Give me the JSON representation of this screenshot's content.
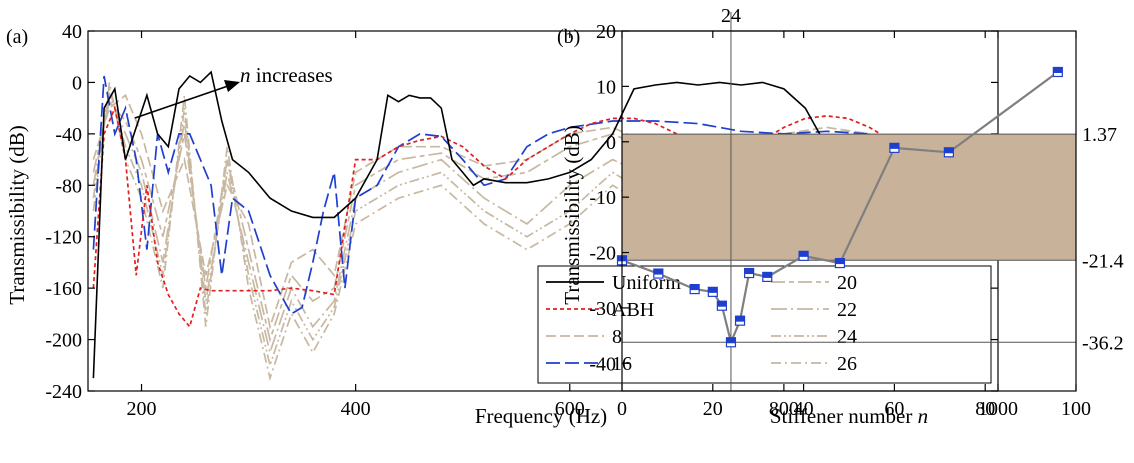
{
  "chart_data": [
    {
      "panel_label": "(a)",
      "type": "line",
      "xlabel": "Frequency (Hz)",
      "ylabel": "Transmissibility (dB)",
      "xlim": [
        150,
        1000
      ],
      "ylim": [
        -240,
        40
      ],
      "xticks": [
        200,
        400,
        600,
        800,
        1000
      ],
      "yticks": [
        40,
        0,
        -40,
        -80,
        -120,
        -160,
        -200,
        -240
      ],
      "grid": false,
      "legend_position": "bottom-right",
      "annotation": {
        "italic": "n",
        "text": " increases"
      },
      "series": [
        {
          "name": "Uniform",
          "color": "#000000",
          "dash": "solid",
          "x": [
            155,
            165,
            175,
            185,
            195,
            205,
            215,
            225,
            235,
            245,
            255,
            265,
            275,
            285,
            300,
            320,
            340,
            360,
            380,
            400,
            420,
            430,
            440,
            450,
            460,
            470,
            480,
            490,
            500,
            510,
            520,
            540,
            560,
            580,
            600,
            620,
            640,
            660,
            680,
            700,
            720,
            740,
            760,
            780,
            800,
            820,
            840,
            860,
            880,
            900,
            910,
            920,
            940,
            960,
            980,
            1000
          ],
          "y": [
            -230,
            -20,
            -5,
            -60,
            -35,
            -10,
            -40,
            -50,
            -5,
            5,
            0,
            8,
            -30,
            -60,
            -70,
            -90,
            -100,
            -105,
            -105,
            -90,
            -60,
            -10,
            -15,
            -10,
            -12,
            -12,
            -20,
            -60,
            -70,
            -80,
            -75,
            -78,
            -78,
            -75,
            -70,
            -60,
            -40,
            -5,
            -2,
            0,
            -2,
            0,
            -2,
            0,
            -5,
            -20,
            -50,
            -70,
            -80,
            -85,
            -75,
            -85,
            -88,
            -90,
            -88,
            -90
          ]
        },
        {
          "name": "ABH",
          "color": "#e02020",
          "dash": "short",
          "x": [
            155,
            165,
            175,
            185,
            195,
            205,
            215,
            225,
            235,
            245,
            255,
            265,
            275,
            285,
            300,
            320,
            340,
            360,
            380,
            400,
            420,
            440,
            460,
            480,
            500,
            520,
            540,
            560,
            580,
            600,
            620,
            640,
            660,
            680,
            700,
            720,
            740,
            760,
            780,
            800,
            820,
            840,
            860,
            880,
            900,
            920,
            940,
            960,
            980,
            1000
          ],
          "y": [
            -160,
            -40,
            -20,
            -60,
            -150,
            -80,
            -140,
            -165,
            -180,
            -190,
            -160,
            -162,
            -162,
            -162,
            -162,
            -162,
            -160,
            -162,
            -165,
            -60,
            -60,
            -50,
            -45,
            -42,
            -50,
            -65,
            -75,
            -60,
            -50,
            -40,
            -32,
            -28,
            -28,
            -32,
            -40,
            -45,
            -52,
            -55,
            -45,
            -35,
            -28,
            -26,
            -28,
            -35,
            -45,
            -55,
            -60,
            -50,
            -55,
            -60
          ]
        },
        {
          "name": "8",
          "color": "#c8b8a2",
          "dash": "dash",
          "x": [
            155,
            170,
            185,
            200,
            220,
            240,
            260,
            280,
            300,
            320,
            340,
            360,
            380,
            400,
            440,
            480,
            520,
            560,
            600,
            640,
            680,
            720,
            760,
            800,
            840,
            880,
            920,
            960,
            1000
          ],
          "y": [
            -60,
            -20,
            -10,
            -40,
            -100,
            -60,
            -150,
            -80,
            -110,
            -190,
            -140,
            -130,
            -150,
            -70,
            -50,
            -50,
            -65,
            -60,
            -40,
            -35,
            -50,
            -60,
            -55,
            -40,
            -35,
            -40,
            -55,
            -50,
            -65
          ]
        },
        {
          "name": "16",
          "color": "#1f3fcf",
          "dash": "long",
          "x": [
            155,
            165,
            175,
            185,
            195,
            205,
            215,
            225,
            235,
            245,
            255,
            265,
            275,
            285,
            300,
            320,
            340,
            350,
            360,
            370,
            380,
            390,
            400,
            420,
            440,
            460,
            480,
            500,
            520,
            540,
            560,
            580,
            600,
            640,
            680,
            720,
            760,
            800,
            840,
            880,
            920,
            960,
            1000
          ],
          "y": [
            -130,
            5,
            -40,
            -20,
            -60,
            -130,
            -40,
            -70,
            -40,
            -40,
            -60,
            -80,
            -150,
            -90,
            -100,
            -150,
            -180,
            -175,
            -140,
            -100,
            -70,
            -160,
            -90,
            -80,
            -50,
            -40,
            -42,
            -60,
            -80,
            -75,
            -50,
            -40,
            -35,
            -30,
            -30,
            -32,
            -38,
            -40,
            -38,
            -40,
            -45,
            -45,
            -55
          ]
        },
        {
          "name": "20",
          "color": "#c8b8a2",
          "dash": "longshort",
          "x": [
            155,
            170,
            185,
            200,
            220,
            240,
            260,
            280,
            300,
            320,
            340,
            360,
            380,
            400,
            440,
            480,
            520,
            560,
            600,
            640,
            680,
            720,
            760,
            800,
            840,
            880,
            920,
            960,
            1000
          ],
          "y": [
            -70,
            -15,
            -30,
            -60,
            -120,
            -40,
            -160,
            -60,
            -130,
            -200,
            -150,
            -170,
            -160,
            -80,
            -60,
            -55,
            -75,
            -70,
            -50,
            -40,
            -55,
            -70,
            -70,
            -55,
            -40,
            -50,
            -60,
            -60,
            -75
          ]
        },
        {
          "name": "22",
          "color": "#c8b8a2",
          "dash": "longdot",
          "x": [
            155,
            170,
            185,
            200,
            220,
            240,
            260,
            280,
            300,
            320,
            340,
            360,
            380,
            400,
            440,
            480,
            520,
            560,
            600,
            640,
            680,
            720,
            760,
            800,
            840,
            880,
            920,
            960,
            1000
          ],
          "y": [
            -80,
            -10,
            -40,
            -70,
            -140,
            -30,
            -170,
            -70,
            -140,
            -210,
            -160,
            -190,
            -170,
            -90,
            -70,
            -60,
            -90,
            -110,
            -80,
            -60,
            -75,
            -90,
            -95,
            -75,
            -55,
            -60,
            -70,
            -70,
            -80
          ]
        },
        {
          "name": "24",
          "color": "#c8b8a2",
          "dash": "dashdotdot",
          "x": [
            155,
            170,
            185,
            200,
            220,
            240,
            260,
            280,
            300,
            320,
            340,
            360,
            380,
            400,
            440,
            480,
            520,
            560,
            600,
            640,
            680,
            720,
            760,
            800,
            840,
            880,
            920,
            960,
            1000
          ],
          "y": [
            -90,
            -5,
            -50,
            -80,
            -150,
            -20,
            -180,
            -60,
            -150,
            -220,
            -170,
            -200,
            -175,
            -100,
            -80,
            -70,
            -100,
            -120,
            -100,
            -70,
            -90,
            -110,
            -115,
            -90,
            -60,
            -70,
            -80,
            -75,
            -85
          ]
        },
        {
          "name": "26",
          "color": "#c8b8a2",
          "dash": "dashdot",
          "x": [
            155,
            170,
            185,
            200,
            220,
            240,
            260,
            280,
            300,
            320,
            340,
            360,
            380,
            400,
            440,
            480,
            520,
            560,
            600,
            640,
            680,
            720,
            760,
            800,
            840,
            880,
            920,
            960,
            1000
          ],
          "y": [
            -100,
            0,
            -60,
            -90,
            -160,
            -10,
            -190,
            -50,
            -160,
            -230,
            -180,
            -210,
            -180,
            -110,
            -90,
            -80,
            -110,
            -130,
            -110,
            -80,
            -100,
            -120,
            -120,
            -100,
            -70,
            -80,
            -90,
            -80,
            -95
          ]
        }
      ]
    },
    {
      "panel_label": "(b)",
      "type": "line",
      "xlabel": "Stiffener number ",
      "xlabel_italic": "n",
      "ylabel": "Transmissibility (dB)",
      "xlim": [
        0,
        100
      ],
      "ylim": [
        -45,
        20
      ],
      "xticks": [
        0,
        20,
        40,
        60,
        80,
        100
      ],
      "yticks": [
        20,
        10,
        0,
        -10,
        -20,
        -30,
        -40
      ],
      "grid": false,
      "band": {
        "y0": -21.4,
        "y1": 1.37,
        "color": "#c8b29a"
      },
      "hlines": [
        1.37,
        -21.4,
        -36.2
      ],
      "vline": 24,
      "right_labels": [
        "1.37",
        "-21.4",
        "-36.2"
      ],
      "top_label": "24",
      "series": [
        {
          "color": "#7f7f7f",
          "marker": "#1f3fcf",
          "x": [
            0,
            8,
            16,
            20,
            22,
            24,
            26,
            28,
            32,
            40,
            48,
            60,
            72,
            96
          ],
          "y": [
            -21.4,
            -23.8,
            -26.6,
            -27.1,
            -29.6,
            -36.2,
            -32.3,
            -23.7,
            -24.4,
            -20.6,
            -21.9,
            -1.1,
            -1.9,
            12.6
          ]
        }
      ]
    }
  ]
}
